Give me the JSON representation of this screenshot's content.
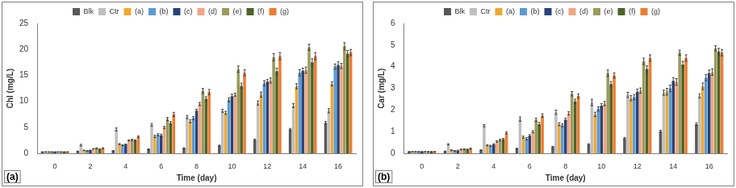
{
  "chart_data": [
    {
      "type": "bar",
      "x_label": "Time (day)",
      "y_label": "Chl (mg/L)",
      "annotations": [
        "(a)"
      ],
      "categories": [
        "0",
        "2",
        "4",
        "6",
        "8",
        "10",
        "12",
        "14",
        "16"
      ],
      "ylim": [
        0,
        25
      ],
      "yticks": [
        0,
        5,
        10,
        15,
        20,
        25
      ],
      "grid": false,
      "legend": "top",
      "series": [
        {
          "name": "Blk",
          "color": "#595959",
          "values": [
            0.3,
            0.4,
            0.5,
            0.8,
            1.0,
            1.5,
            2.6,
            4.6,
            5.9
          ],
          "errors": [
            0.02,
            0.05,
            0.05,
            0.08,
            0.1,
            0.1,
            0.15,
            0.2,
            0.25
          ]
        },
        {
          "name": "Ctr",
          "color": "#bfbfbf",
          "values": [
            0.3,
            1.6,
            4.6,
            5.5,
            7.0,
            8.2,
            9.7,
            9.2,
            8.2
          ],
          "errors": [
            0.03,
            0.15,
            0.3,
            0.25,
            0.3,
            0.3,
            0.4,
            0.4,
            0.4
          ]
        },
        {
          "name": "(a)",
          "color": "#f0a830",
          "values": [
            0.3,
            0.6,
            1.8,
            3.3,
            6.2,
            7.8,
            11.3,
            12.9,
            13.4
          ],
          "errors": [
            0.02,
            0.05,
            0.1,
            0.2,
            0.3,
            0.3,
            0.5,
            0.5,
            0.4
          ]
        },
        {
          "name": "(b)",
          "color": "#5b9bd5",
          "values": [
            0.3,
            0.5,
            1.6,
            3.6,
            6.8,
            10.3,
            13.5,
            15.5,
            16.7
          ],
          "errors": [
            0.02,
            0.05,
            0.1,
            0.2,
            0.3,
            0.4,
            0.5,
            0.6,
            0.5
          ]
        },
        {
          "name": "(c)",
          "color": "#264478",
          "values": [
            0.3,
            0.6,
            1.7,
            3.5,
            8.2,
            11.0,
            13.8,
            15.9,
            17.0
          ],
          "errors": [
            0.02,
            0.05,
            0.1,
            0.2,
            0.3,
            0.4,
            0.4,
            0.5,
            0.6
          ]
        },
        {
          "name": "(d)",
          "color": "#f4a582",
          "values": [
            0.3,
            0.9,
            2.5,
            5.0,
            9.5,
            11.3,
            14.0,
            16.0,
            16.8
          ],
          "errors": [
            0.02,
            0.05,
            0.1,
            0.2,
            0.3,
            0.3,
            0.5,
            0.6,
            0.5
          ]
        },
        {
          "name": "(e)",
          "color": "#9a9a5c",
          "values": [
            0.3,
            1.0,
            2.6,
            6.6,
            12.0,
            16.2,
            18.5,
            20.4,
            20.6
          ],
          "errors": [
            0.02,
            0.08,
            0.15,
            0.3,
            0.5,
            0.6,
            0.7,
            0.6,
            0.7
          ]
        },
        {
          "name": "(f)",
          "color": "#4f6228",
          "values": [
            0.3,
            0.8,
            2.5,
            5.8,
            10.5,
            13.0,
            15.8,
            17.5,
            19.2
          ],
          "errors": [
            0.02,
            0.06,
            0.12,
            0.3,
            0.4,
            0.5,
            0.6,
            0.7,
            0.6
          ]
        },
        {
          "name": "(g)",
          "color": "#ed7d31",
          "values": [
            0.3,
            1.0,
            3.2,
            7.5,
            11.8,
            15.5,
            18.7,
            18.7,
            19.4
          ],
          "errors": [
            0.02,
            0.08,
            0.15,
            0.4,
            0.5,
            0.6,
            0.7,
            0.7,
            0.6
          ]
        }
      ]
    },
    {
      "type": "bar",
      "x_label": "Time (day)",
      "y_label": "Car (mg/L)",
      "annotations": [
        "(b)"
      ],
      "categories": [
        "0",
        "2",
        "4",
        "6",
        "8",
        "10",
        "12",
        "14",
        "16"
      ],
      "ylim": [
        0,
        6
      ],
      "yticks": [
        0,
        1,
        2,
        3,
        4,
        5,
        6
      ],
      "grid": false,
      "legend": "top",
      "series": [
        {
          "name": "Blk",
          "color": "#595959",
          "values": [
            0.08,
            0.1,
            0.15,
            0.22,
            0.3,
            0.42,
            0.7,
            1.02,
            1.35
          ],
          "errors": [
            0.01,
            0.01,
            0.02,
            0.02,
            0.03,
            0.03,
            0.04,
            0.05,
            0.06
          ]
        },
        {
          "name": "Ctr",
          "color": "#bfbfbf",
          "values": [
            0.08,
            0.42,
            1.28,
            1.58,
            1.9,
            2.35,
            2.7,
            2.8,
            2.65
          ],
          "errors": [
            0.01,
            0.03,
            0.05,
            0.1,
            0.1,
            0.15,
            0.12,
            0.12,
            0.1
          ]
        },
        {
          "name": "(a)",
          "color": "#f0a830",
          "values": [
            0.08,
            0.15,
            0.38,
            0.75,
            1.35,
            1.8,
            2.55,
            2.85,
            3.1
          ],
          "errors": [
            0.01,
            0.02,
            0.03,
            0.05,
            0.07,
            0.1,
            0.12,
            0.15,
            0.15
          ]
        },
        {
          "name": "(b)",
          "color": "#5b9bd5",
          "values": [
            0.08,
            0.12,
            0.35,
            0.68,
            1.3,
            2.05,
            2.6,
            3.0,
            3.5
          ],
          "errors": [
            0.01,
            0.02,
            0.03,
            0.05,
            0.07,
            0.1,
            0.12,
            0.15,
            0.15
          ]
        },
        {
          "name": "(c)",
          "color": "#264478",
          "values": [
            0.08,
            0.13,
            0.42,
            0.82,
            1.55,
            2.2,
            2.85,
            3.35,
            3.7
          ],
          "errors": [
            0.01,
            0.02,
            0.03,
            0.05,
            0.08,
            0.1,
            0.12,
            0.15,
            0.15
          ]
        },
        {
          "name": "(d)",
          "color": "#f4a582",
          "values": [
            0.08,
            0.18,
            0.55,
            1.0,
            1.85,
            2.3,
            2.9,
            3.3,
            3.75
          ],
          "errors": [
            0.01,
            0.02,
            0.03,
            0.05,
            0.08,
            0.1,
            0.12,
            0.15,
            0.15
          ]
        },
        {
          "name": "(e)",
          "color": "#9a9a5c",
          "values": [
            0.08,
            0.2,
            0.62,
            1.55,
            2.75,
            3.7,
            4.25,
            4.65,
            4.85
          ],
          "errors": [
            0.01,
            0.02,
            0.04,
            0.08,
            0.1,
            0.15,
            0.15,
            0.12,
            0.12
          ]
        },
        {
          "name": "(f)",
          "color": "#4f6228",
          "values": [
            0.08,
            0.18,
            0.65,
            1.35,
            2.4,
            3.2,
            3.9,
            4.1,
            4.7
          ],
          "errors": [
            0.01,
            0.02,
            0.04,
            0.08,
            0.1,
            0.12,
            0.15,
            0.15,
            0.15
          ]
        },
        {
          "name": "(g)",
          "color": "#ed7d31",
          "values": [
            0.08,
            0.22,
            0.95,
            1.75,
            2.65,
            3.6,
            4.4,
            4.4,
            4.65
          ],
          "errors": [
            0.01,
            0.02,
            0.05,
            0.08,
            0.1,
            0.12,
            0.15,
            0.15,
            0.15
          ]
        }
      ]
    }
  ]
}
